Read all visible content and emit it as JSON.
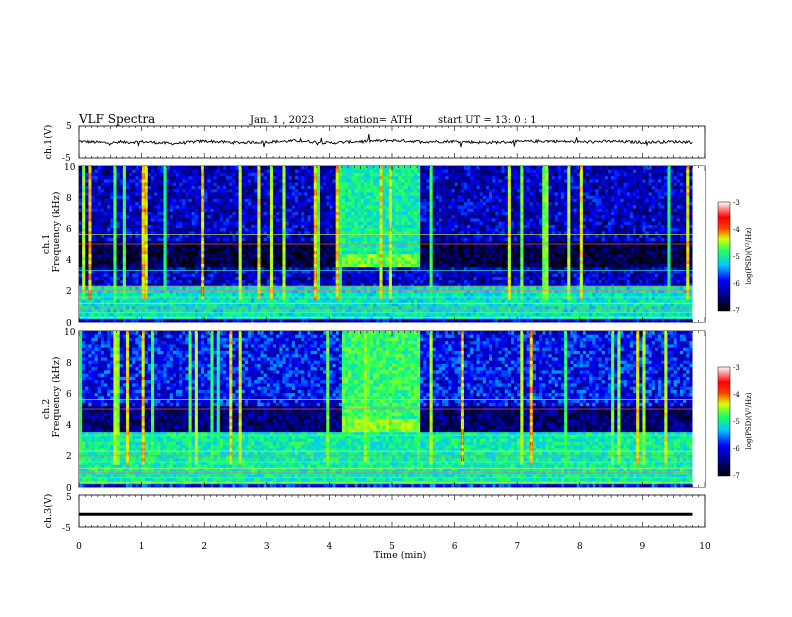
{
  "header": {
    "title": "VLF  Spectra",
    "date": "Jan.  1  , 2023",
    "station": "station= ATH",
    "start": "start  UT  =   13: 0   : 1"
  },
  "ch1_wave": {
    "ylabel": "ch.1(V)",
    "yticks": [
      "5",
      "-5"
    ]
  },
  "spec1": {
    "ylabel_ch": "ch.1",
    "ylabel_q": "Frequency  (kHz)",
    "yticks": [
      "10",
      "8",
      "6",
      "4",
      "2",
      "0"
    ],
    "colorbar_label": "log(PSD)(V²/Hz)",
    "colorbar_ticks": [
      "-3",
      "-4",
      "-5",
      "-6",
      "-7"
    ]
  },
  "spec2": {
    "ylabel_ch": "ch.2",
    "ylabel_q": "Frequency  (kHz)",
    "yticks": [
      "10",
      "8",
      "6",
      "4",
      "2",
      "0"
    ],
    "colorbar_label": "log(PSD)(V²/Hz)",
    "colorbar_ticks": [
      "-3",
      "-4",
      "-5",
      "-6",
      "-7"
    ]
  },
  "ch3_wave": {
    "ylabel": "ch.3(V)",
    "yticks": [
      "5",
      "-5"
    ]
  },
  "xaxis": {
    "label": "Time  (min)",
    "ticks": [
      "0",
      "1",
      "2",
      "3",
      "4",
      "5",
      "6",
      "7",
      "8",
      "9",
      "10"
    ]
  },
  "colors": {
    "psd_low": "#000000",
    "psd_mid_low": "#0000cc",
    "psd_mid": "#00e5ff",
    "psd_mid_high": "#20ff20",
    "psd_high": "#ff2000",
    "psd_max": "#ffffff"
  },
  "chart_data": [
    {
      "type": "line",
      "panel": "ch.1 waveform",
      "ylabel": "ch.1(V)",
      "xlabel": "",
      "xlim": [
        0,
        10
      ],
      "ylim": [
        -5,
        5
      ],
      "x": [
        0.0,
        0.5,
        1.0,
        1.5,
        2.0,
        2.5,
        3.0,
        3.5,
        4.0,
        4.5,
        5.0,
        5.5,
        6.0,
        6.5,
        7.0,
        7.5,
        8.0,
        8.5,
        9.0,
        9.5,
        9.8
      ],
      "values": [
        0.2,
        -0.3,
        0.1,
        -0.5,
        0.3,
        -0.2,
        0.0,
        0.4,
        -0.3,
        0.2,
        0.5,
        0.1,
        0.2,
        -0.2,
        0.1,
        0.3,
        0.0,
        0.2,
        -0.1,
        0.1,
        0.0
      ]
    },
    {
      "type": "heatmap",
      "panel": "ch.1 spectrogram",
      "xlabel": "",
      "ylabel": "ch.1 Frequency (kHz)",
      "xlim": [
        0,
        10
      ],
      "ylim": [
        0,
        10
      ],
      "color_scale": "log(PSD)(V²/Hz)",
      "color_range": [
        -7,
        -3
      ],
      "background_level": -6.2,
      "features": [
        {
          "name": "broadband burst",
          "t_range": [
            4.2,
            5.45
          ],
          "f_range": [
            3.5,
            10
          ],
          "level": -5.2
        },
        {
          "name": "intense band",
          "t_range": [
            4.2,
            5.4
          ],
          "f_range": [
            3.6,
            4.3
          ],
          "level": -4.8
        },
        {
          "name": "low-frequency bands",
          "t_range": [
            0,
            9.8
          ],
          "f_range": [
            0.2,
            2.2
          ],
          "level": -5.3
        }
      ]
    },
    {
      "type": "heatmap",
      "panel": "ch.2 spectrogram",
      "xlabel": "",
      "ylabel": "ch.2 Frequency (kHz)",
      "xlim": [
        0,
        10
      ],
      "ylim": [
        0,
        10
      ],
      "color_scale": "log(PSD)(V²/Hz)",
      "color_range": [
        -7,
        -3
      ],
      "background_level": -6.0,
      "features": [
        {
          "name": "broadband burst",
          "t_range": [
            4.2,
            5.45
          ],
          "f_range": [
            3.5,
            10
          ],
          "level": -5.0
        },
        {
          "name": "intense band",
          "t_range": [
            4.2,
            5.4
          ],
          "f_range": [
            3.6,
            4.3
          ],
          "level": -4.7
        },
        {
          "name": "low-frequency bands",
          "t_range": [
            0,
            9.8
          ],
          "f_range": [
            0.2,
            3.5
          ],
          "level": -5.2
        }
      ]
    },
    {
      "type": "line",
      "panel": "ch.3 waveform",
      "ylabel": "ch.3(V)",
      "xlabel": "Time (min)",
      "xlim": [
        0,
        10
      ],
      "ylim": [
        -5,
        5
      ],
      "x": [
        0,
        9.8
      ],
      "values": [
        -1,
        -1
      ]
    }
  ]
}
